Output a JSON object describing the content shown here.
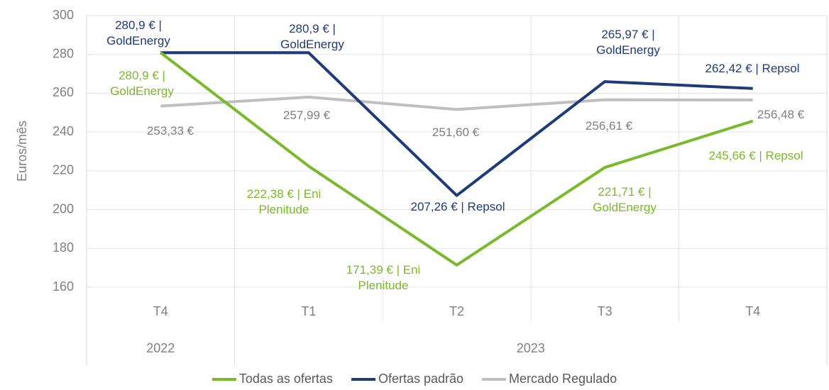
{
  "chart_data": {
    "type": "line",
    "y_label": "Euros/mês",
    "categories": [
      "T4",
      "T1",
      "T2",
      "T3",
      "T4"
    ],
    "groups": [
      {
        "label": "2022",
        "count": 1
      },
      {
        "label": "2023",
        "count": 4
      }
    ],
    "ylim": [
      160,
      300
    ],
    "yticks": [
      160,
      180,
      200,
      220,
      240,
      260,
      280,
      300
    ],
    "grid": true,
    "legend": "bottom",
    "series": [
      {
        "name": "Todas as ofertas",
        "color": "#7ab929",
        "values": [
          280.9,
          222.38,
          171.39,
          221.71,
          245.66
        ],
        "value_labels": [
          "280,9 € | GoldEnergy",
          "222,38 € | Eni Plenitude",
          "171,39 € | Eni Plenitude",
          "221,71 € | GoldEnergy",
          "245,66 € | Repsol"
        ]
      },
      {
        "name": "Ofertas padrão",
        "color": "#1f3a7a",
        "values": [
          280.9,
          280.9,
          207.26,
          265.97,
          262.42
        ],
        "value_labels": [
          "280,9 € | GoldEnergy",
          "280,9 € | GoldEnergy",
          "207,26 € | Repsol",
          "265,97 € | GoldEnergy",
          "262,42 € | Repsol"
        ]
      },
      {
        "name": "Mercado Regulado",
        "color": "#bfbfbf",
        "values": [
          253.33,
          257.99,
          251.6,
          256.61,
          256.48
        ],
        "value_labels": [
          "253,33 €",
          "257,99 €",
          "251,60 €",
          "256,61 €",
          "256,48 €"
        ]
      }
    ]
  }
}
